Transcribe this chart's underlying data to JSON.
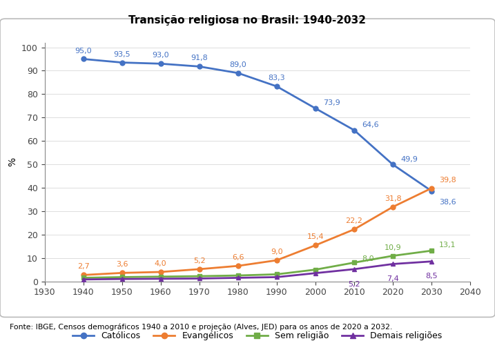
{
  "title": "Transição religiosa no Brasil: 1940-2032",
  "ylabel": "%",
  "xlim": [
    1930,
    2040
  ],
  "ylim": [
    0,
    102
  ],
  "yticks": [
    0,
    10,
    20,
    30,
    40,
    50,
    60,
    70,
    80,
    90,
    100
  ],
  "xticks": [
    1930,
    1940,
    1950,
    1960,
    1970,
    1980,
    1990,
    2000,
    2010,
    2020,
    2030,
    2040
  ],
  "years": [
    1940,
    1950,
    1960,
    1970,
    1980,
    1990,
    2000,
    2010,
    2020,
    2030
  ],
  "catolicos": [
    95.0,
    93.5,
    93.0,
    91.8,
    89.0,
    83.3,
    73.9,
    64.6,
    49.9,
    38.6
  ],
  "evangelicos": [
    2.7,
    3.6,
    4.0,
    5.2,
    6.6,
    9.0,
    15.4,
    22.2,
    31.8,
    39.8
  ],
  "sem_religiao_full": [
    1.5,
    1.8,
    2.0,
    2.2,
    2.5,
    3.0,
    5.0,
    8.0,
    10.9,
    13.1
  ],
  "demais_religioes_full": [
    0.8,
    1.0,
    1.1,
    1.2,
    1.5,
    1.8,
    3.5,
    5.2,
    7.4,
    8.5
  ],
  "color_catolicos": "#4472C4",
  "color_evangelicos": "#ED7D31",
  "color_sem_religiao": "#70AD47",
  "color_demais_religioes": "#7030A0",
  "fonte": "Fonte: IBGE, Censos demográficos 1940 a 2010 e projeção (Alves, JED) para os anos de 2020 a 2032.",
  "label_catolicos": "Católicos",
  "label_evangelicos": "Evangélicos",
  "label_sem_religiao": "Sem religião",
  "label_demais": "Demais religiões",
  "annotations_catolicos": [
    [
      1940,
      95.0,
      "95,0",
      0,
      5
    ],
    [
      1950,
      93.5,
      "93,5",
      0,
      5
    ],
    [
      1960,
      93.0,
      "93,0",
      0,
      5
    ],
    [
      1970,
      91.8,
      "91,8",
      0,
      5
    ],
    [
      1980,
      89.0,
      "89,0",
      0,
      5
    ],
    [
      1990,
      83.3,
      "83,3",
      0,
      5
    ],
    [
      2000,
      73.9,
      "73,9",
      8,
      2
    ],
    [
      2010,
      64.6,
      "64,6",
      8,
      2
    ],
    [
      2020,
      49.9,
      "49,9",
      8,
      2
    ],
    [
      2030,
      38.6,
      "38,6",
      8,
      -8
    ]
  ],
  "annotations_evangelicos": [
    [
      1940,
      2.7,
      "2,7",
      0,
      5
    ],
    [
      1950,
      3.6,
      "3,6",
      0,
      5
    ],
    [
      1960,
      4.0,
      "4,0",
      0,
      5
    ],
    [
      1970,
      5.2,
      "5,2",
      0,
      5
    ],
    [
      1980,
      6.6,
      "6,6",
      0,
      5
    ],
    [
      1990,
      9.0,
      "9,0",
      0,
      5
    ],
    [
      2000,
      15.4,
      "15,4",
      0,
      5
    ],
    [
      2010,
      22.2,
      "22,2",
      0,
      5
    ],
    [
      2020,
      31.8,
      "31,8",
      0,
      5
    ],
    [
      2030,
      39.8,
      "39,8",
      8,
      5
    ]
  ],
  "annotations_sem_religiao": [
    [
      2010,
      8.0,
      "8,0",
      8,
      0
    ],
    [
      2020,
      10.9,
      "10,9",
      0,
      5
    ],
    [
      2030,
      13.1,
      "13,1",
      8,
      2
    ]
  ],
  "annotations_demais": [
    [
      2010,
      5.2,
      "5,2",
      0,
      -12
    ],
    [
      2020,
      7.4,
      "7,4",
      0,
      -12
    ],
    [
      2030,
      8.5,
      "8,5",
      0,
      -12
    ]
  ]
}
